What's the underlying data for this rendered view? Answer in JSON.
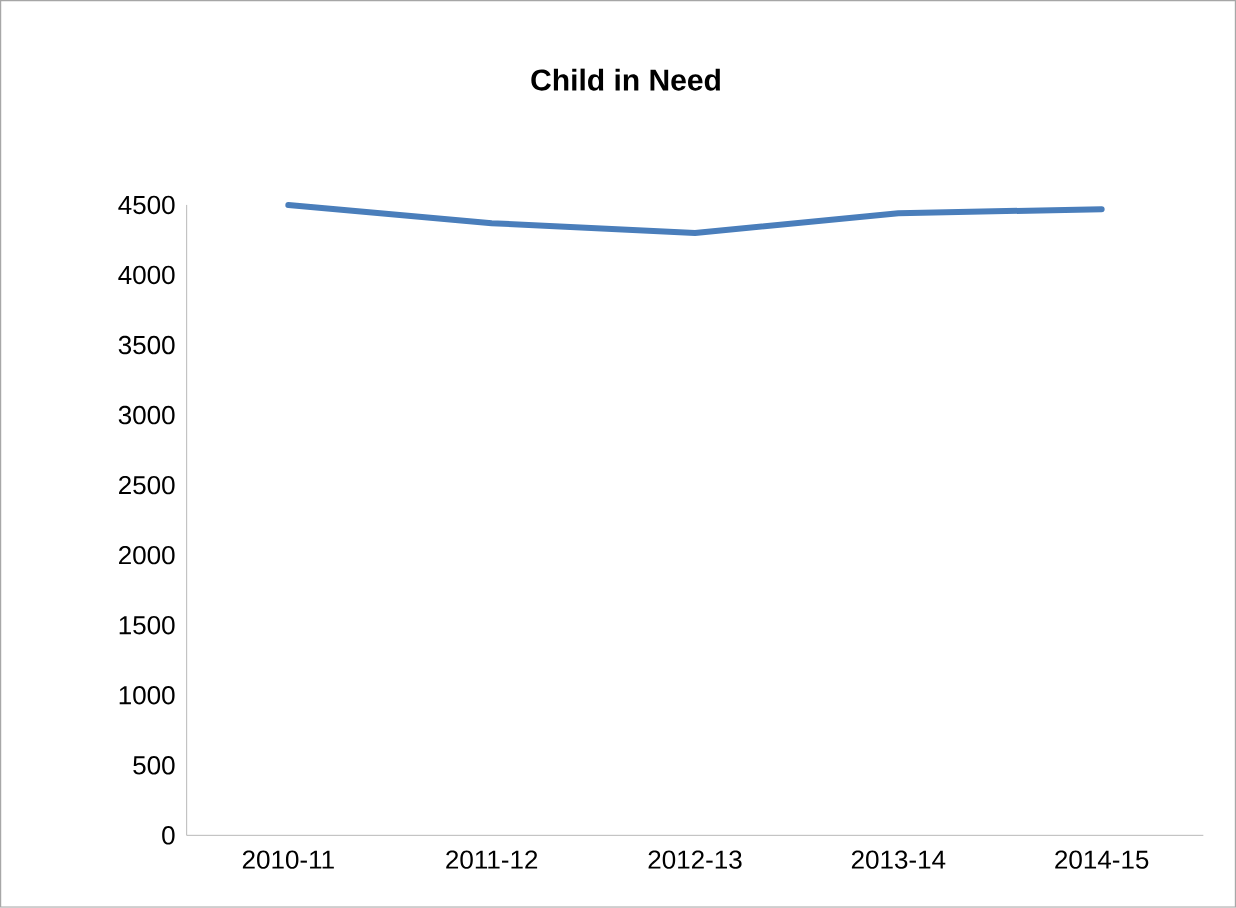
{
  "chart_data": {
    "type": "line",
    "title": "Child in Need",
    "categories": [
      "2010-11",
      "2011-12",
      "2012-13",
      "2013-14",
      "2014-15"
    ],
    "values": [
      4500,
      4370,
      4300,
      4440,
      4470
    ],
    "color": "#4a7ebb",
    "ylim": [
      0,
      4500
    ],
    "yticks": [
      0,
      500,
      1000,
      1500,
      2000,
      2500,
      3000,
      3500,
      4000,
      4500
    ],
    "grid": false,
    "marker": "none",
    "line_style": "solid"
  }
}
